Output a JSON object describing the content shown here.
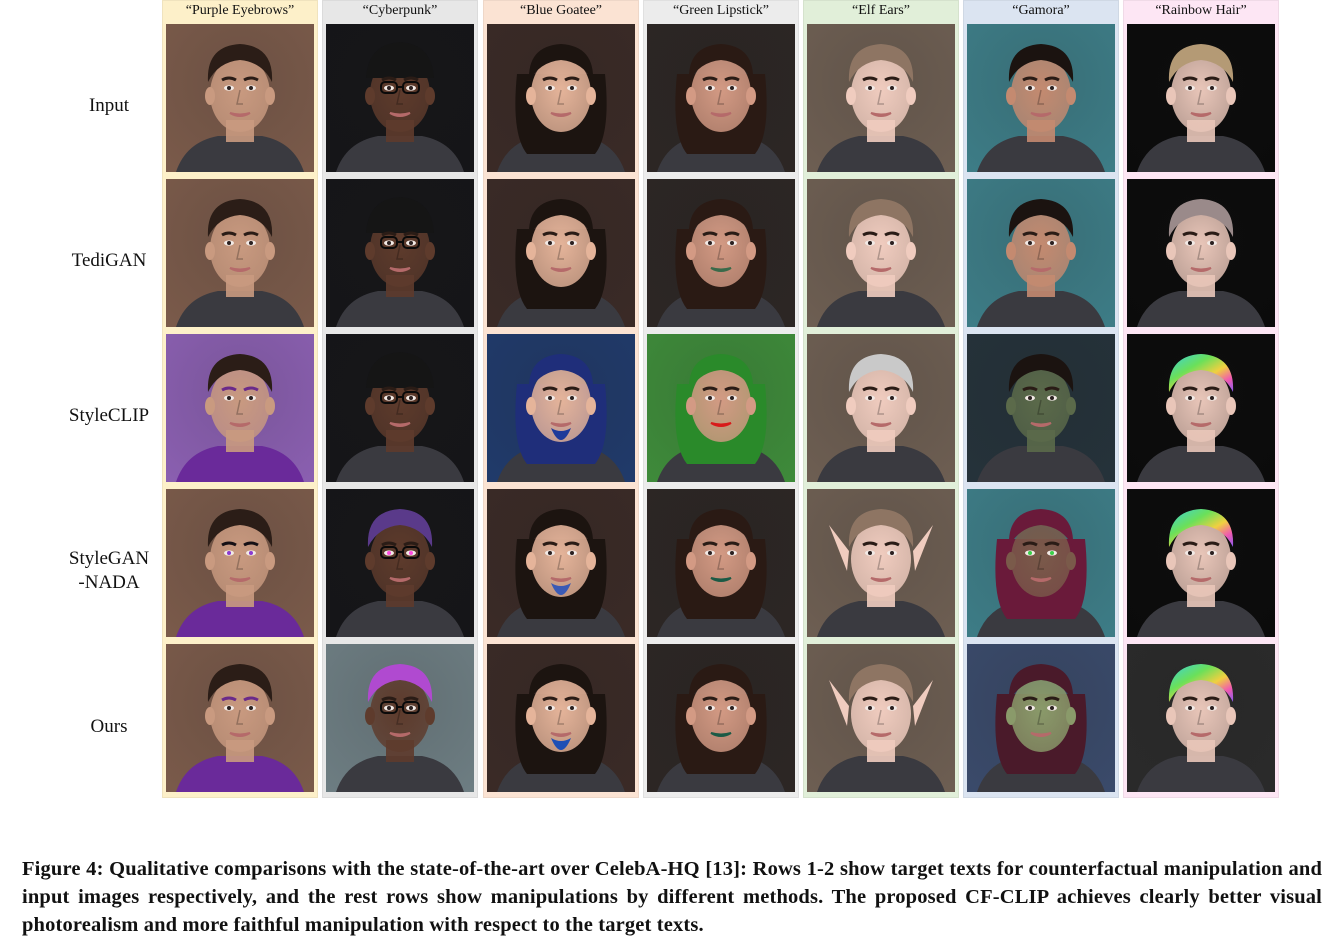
{
  "figure": {
    "columns": [
      {
        "label": "“Purple Eyebrows”",
        "bg": "#fdf0c9"
      },
      {
        "label": "“Cyberpunk”",
        "bg": "#e7e7e7"
      },
      {
        "label": "“Blue Goatee”",
        "bg": "#fbe3d3"
      },
      {
        "label": "“Green Lipstick”",
        "bg": "#ececec"
      },
      {
        "label": "“Elf Ears”",
        "bg": "#e1efd9"
      },
      {
        "label": "“Gamora”",
        "bg": "#dbe4f1"
      },
      {
        "label": "“Rainbow Hair”",
        "bg": "#fde6f4"
      }
    ],
    "rows": [
      {
        "label": "Input"
      },
      {
        "label": "TediGAN"
      },
      {
        "label": "StyleCLIP"
      },
      {
        "label": "StyleGAN\n-NADA"
      },
      {
        "label": "Ours"
      }
    ],
    "face_colors": {
      "skin_base": [
        "#c99a80",
        "#5e3b2c",
        "#e5b49a",
        "#d39a84",
        "#f0ccbf",
        "#c48a70",
        "#e9c6b9"
      ],
      "hair_base": [
        "#2b1d17",
        "#1d1a1d",
        "#1c1410",
        "#2a1a14",
        "#8e7563",
        "#1b1310",
        "#b49a75"
      ],
      "bg_base": [
        "#7a5a4a",
        "#151518",
        "#3a2a26",
        "#2c2624",
        "#6d5e52",
        "#3d7c86",
        "#0b0b0b"
      ]
    }
  },
  "caption": {
    "text": "Figure 4: Qualitative comparisons with the state-of-the-art over CelebA-HQ [13]: Rows 1-2 show target texts for counterfactual manipulation and input images respectively, and the rest rows show manipulations by different methods. The proposed CF-CLIP achieves clearly better visual photorealism and more faithful manipulation with respect to the target texts."
  }
}
